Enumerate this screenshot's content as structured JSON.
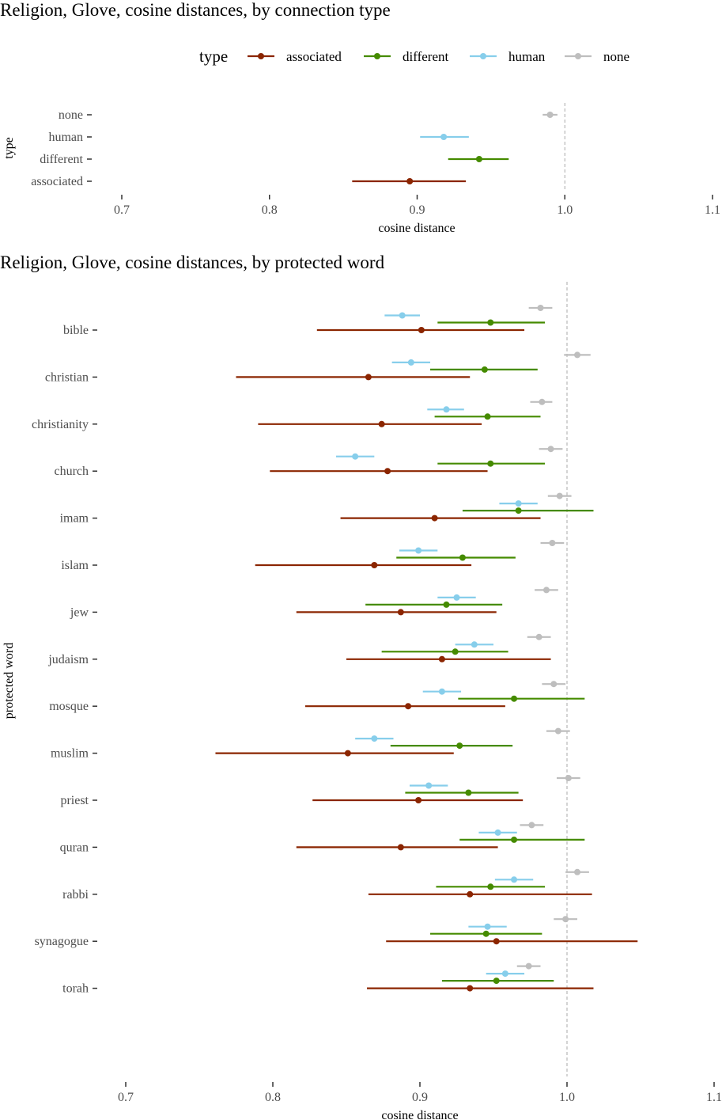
{
  "colors": {
    "associated": "#8B2500",
    "different": "#458B00",
    "human": "#87CEEB",
    "none": "#BEBEBE",
    "refline": "#A9A9A9",
    "tickmark": "#333333"
  },
  "legend": {
    "title": "type",
    "entries": [
      {
        "key": "associated",
        "label": "associated"
      },
      {
        "key": "different",
        "label": "different"
      },
      {
        "key": "human",
        "label": "human"
      },
      {
        "key": "none",
        "label": "none"
      }
    ]
  },
  "chart_data": [
    {
      "type": "dot-and-interval",
      "title": "Religion, Glove,  cosine distances, by connection type",
      "xlabel": "cosine distance",
      "ylabel": "type",
      "xlim": [
        0.7,
        1.1
      ],
      "xticks": [
        "0.7",
        "0.8",
        "0.9",
        "1.0",
        "1.1"
      ],
      "reference_line": 1.0,
      "categories": [
        "none",
        "human",
        "different",
        "associated"
      ],
      "points": [
        {
          "category": "none",
          "type": "none",
          "mean": 0.99,
          "low": 0.985,
          "high": 0.995
        },
        {
          "category": "human",
          "type": "human",
          "mean": 0.918,
          "low": 0.902,
          "high": 0.935
        },
        {
          "category": "different",
          "type": "different",
          "mean": 0.942,
          "low": 0.921,
          "high": 0.962
        },
        {
          "category": "associated",
          "type": "associated",
          "mean": 0.895,
          "low": 0.856,
          "high": 0.933
        }
      ]
    },
    {
      "type": "dot-and-interval",
      "title": "Religion, Glove, cosine distances, by protected word",
      "xlabel": "cosine distance",
      "ylabel": "protected word",
      "xlim": [
        0.7,
        1.1
      ],
      "xticks": [
        "0.7",
        "0.8",
        "0.9",
        "1.0",
        "1.1"
      ],
      "reference_line": 1.0,
      "categories": [
        "bible",
        "christian",
        "christianity",
        "church",
        "imam",
        "islam",
        "jew",
        "judaism",
        "mosque",
        "muslim",
        "priest",
        "quran",
        "rabbi",
        "synagogue",
        "torah"
      ],
      "groups": [
        {
          "word": "bible",
          "none": [
            0.982,
            0.974,
            0.99
          ],
          "human": [
            0.888,
            0.876,
            0.9
          ],
          "different": [
            0.948,
            0.912,
            0.985
          ],
          "associated": [
            0.901,
            0.83,
            0.971
          ]
        },
        {
          "word": "christian",
          "none": [
            1.007,
            0.998,
            1.016
          ],
          "human": [
            0.894,
            0.881,
            0.907
          ],
          "different": [
            0.944,
            0.907,
            0.98
          ],
          "associated": [
            0.865,
            0.775,
            0.934
          ]
        },
        {
          "word": "christianity",
          "none": [
            0.983,
            0.975,
            0.99
          ],
          "human": [
            0.918,
            0.905,
            0.93
          ],
          "different": [
            0.946,
            0.91,
            0.982
          ],
          "associated": [
            0.874,
            0.79,
            0.942
          ]
        },
        {
          "word": "church",
          "none": [
            0.989,
            0.981,
            0.997
          ],
          "human": [
            0.856,
            0.843,
            0.869
          ],
          "different": [
            0.948,
            0.912,
            0.985
          ],
          "associated": [
            0.878,
            0.798,
            0.946
          ]
        },
        {
          "word": "imam",
          "none": [
            0.995,
            0.987,
            1.003
          ],
          "human": [
            0.967,
            0.954,
            0.98
          ],
          "different": [
            0.967,
            0.929,
            1.018
          ],
          "associated": [
            0.91,
            0.846,
            0.982
          ]
        },
        {
          "word": "islam",
          "none": [
            0.99,
            0.982,
            0.998
          ],
          "human": [
            0.899,
            0.886,
            0.912
          ],
          "different": [
            0.929,
            0.884,
            0.965
          ],
          "associated": [
            0.869,
            0.788,
            0.935
          ]
        },
        {
          "word": "jew",
          "none": [
            0.986,
            0.978,
            0.994
          ],
          "human": [
            0.925,
            0.912,
            0.938
          ],
          "different": [
            0.918,
            0.863,
            0.956
          ],
          "associated": [
            0.887,
            0.816,
            0.952
          ]
        },
        {
          "word": "judaism",
          "none": [
            0.981,
            0.973,
            0.989
          ],
          "human": [
            0.937,
            0.924,
            0.95
          ],
          "different": [
            0.924,
            0.874,
            0.96
          ],
          "associated": [
            0.915,
            0.85,
            0.989
          ]
        },
        {
          "word": "mosque",
          "none": [
            0.991,
            0.983,
            0.999
          ],
          "human": [
            0.915,
            0.902,
            0.928
          ],
          "different": [
            0.964,
            0.926,
            1.012
          ],
          "associated": [
            0.892,
            0.822,
            0.958
          ]
        },
        {
          "word": "muslim",
          "none": [
            0.994,
            0.986,
            1.002
          ],
          "human": [
            0.869,
            0.856,
            0.882
          ],
          "different": [
            0.927,
            0.88,
            0.963
          ],
          "associated": [
            0.851,
            0.761,
            0.923
          ]
        },
        {
          "word": "priest",
          "none": [
            1.001,
            0.993,
            1.009
          ],
          "human": [
            0.906,
            0.893,
            0.919
          ],
          "different": [
            0.933,
            0.89,
            0.967
          ],
          "associated": [
            0.899,
            0.827,
            0.97
          ]
        },
        {
          "word": "quran",
          "none": [
            0.976,
            0.968,
            0.984
          ],
          "human": [
            0.953,
            0.94,
            0.966
          ],
          "different": [
            0.964,
            0.927,
            1.012
          ],
          "associated": [
            0.887,
            0.816,
            0.953
          ]
        },
        {
          "word": "rabbi",
          "none": [
            1.007,
            0.999,
            1.015
          ],
          "human": [
            0.964,
            0.951,
            0.977
          ],
          "different": [
            0.948,
            0.911,
            0.985
          ],
          "associated": [
            0.934,
            0.865,
            1.017
          ]
        },
        {
          "word": "synagogue",
          "none": [
            0.999,
            0.991,
            1.007
          ],
          "human": [
            0.946,
            0.933,
            0.959
          ],
          "different": [
            0.945,
            0.907,
            0.983
          ],
          "associated": [
            0.952,
            0.877,
            1.048
          ]
        },
        {
          "word": "torah",
          "none": [
            0.974,
            0.966,
            0.982
          ],
          "human": [
            0.958,
            0.945,
            0.971
          ],
          "different": [
            0.952,
            0.915,
            0.991
          ],
          "associated": [
            0.934,
            0.864,
            1.018
          ]
        }
      ]
    }
  ]
}
